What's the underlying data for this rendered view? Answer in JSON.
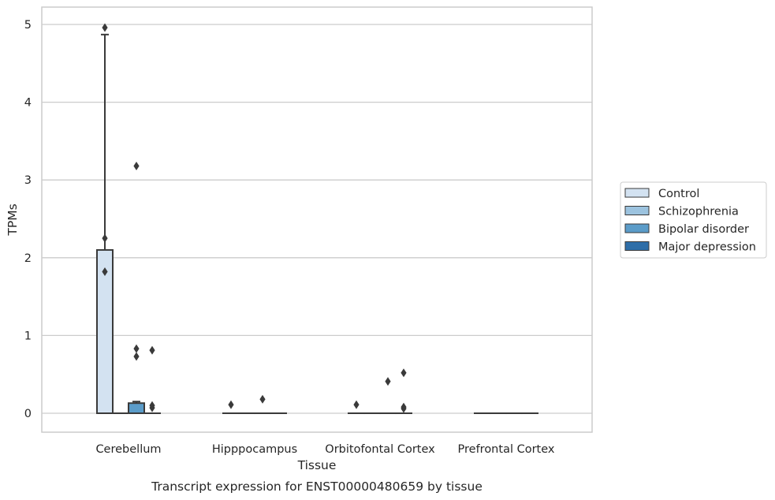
{
  "chart_data": {
    "type": "box",
    "title": "",
    "caption": "Transcript expression for ENST00000480659 by tissue",
    "xlabel": "Tissue",
    "ylabel": "TPMs",
    "ylim": [
      -0.24,
      5.22
    ],
    "yticks": [
      0,
      1,
      2,
      3,
      4,
      5
    ],
    "grid": true,
    "legend_position": "right",
    "categories": [
      "Cerebellum",
      "Hipppocampus",
      "Orbitofontal Cortex",
      "Prefrontal Cortex"
    ],
    "series": [
      {
        "name": "Control",
        "color": "#d3e2f1",
        "boxes": [
          {
            "q1": 0,
            "median": 0,
            "q3": 2.1,
            "whisker_low": 0,
            "whisker_high": 4.87,
            "outliers": [
              4.96,
              2.25,
              1.82
            ]
          },
          {
            "q1": 0,
            "median": 0,
            "q3": 0,
            "whisker_low": 0,
            "whisker_high": 0,
            "outliers": [
              0.11
            ]
          },
          {
            "q1": 0,
            "median": 0,
            "q3": 0,
            "whisker_low": 0,
            "whisker_high": 0,
            "outliers": [
              0.11
            ]
          },
          {
            "q1": 0,
            "median": 0,
            "q3": 0,
            "whisker_low": 0,
            "whisker_high": 0,
            "outliers": []
          }
        ]
      },
      {
        "name": "Schizophrenia",
        "color": "#9cc3df",
        "boxes": [
          {
            "q1": 0,
            "median": 0,
            "q3": 0,
            "whisker_low": 0,
            "whisker_high": 0,
            "outliers": []
          },
          {
            "q1": 0,
            "median": 0,
            "q3": 0,
            "whisker_low": 0,
            "whisker_high": 0,
            "outliers": []
          },
          {
            "q1": 0,
            "median": 0,
            "q3": 0,
            "whisker_low": 0,
            "whisker_high": 0,
            "outliers": []
          },
          {
            "q1": 0,
            "median": 0,
            "q3": 0,
            "whisker_low": 0,
            "whisker_high": 0,
            "outliers": []
          }
        ]
      },
      {
        "name": "Bipolar disorder",
        "color": "#5b9cc9",
        "boxes": [
          {
            "q1": 0,
            "median": 0,
            "q3": 0.13,
            "whisker_low": 0,
            "whisker_high": 0.15,
            "outliers": [
              3.18,
              0.83,
              0.73
            ]
          },
          {
            "q1": 0,
            "median": 0,
            "q3": 0,
            "whisker_low": 0,
            "whisker_high": 0,
            "outliers": [
              0.18
            ]
          },
          {
            "q1": 0,
            "median": 0,
            "q3": 0,
            "whisker_low": 0,
            "whisker_high": 0,
            "outliers": [
              0.41
            ]
          },
          {
            "q1": 0,
            "median": 0,
            "q3": 0,
            "whisker_low": 0,
            "whisker_high": 0,
            "outliers": []
          }
        ]
      },
      {
        "name": "Major depression",
        "color": "#2e6ea8",
        "boxes": [
          {
            "q1": 0,
            "median": 0,
            "q3": 0,
            "whisker_low": 0,
            "whisker_high": 0,
            "outliers": [
              0.81,
              0.1,
              0.07
            ]
          },
          {
            "q1": 0,
            "median": 0,
            "q3": 0,
            "whisker_low": 0,
            "whisker_high": 0,
            "outliers": []
          },
          {
            "q1": 0,
            "median": 0,
            "q3": 0,
            "whisker_low": 0,
            "whisker_high": 0,
            "outliers": [
              0.52,
              0.08,
              0.06
            ]
          },
          {
            "q1": 0,
            "median": 0,
            "q3": 0,
            "whisker_low": 0,
            "whisker_high": 0,
            "outliers": []
          }
        ]
      }
    ]
  }
}
